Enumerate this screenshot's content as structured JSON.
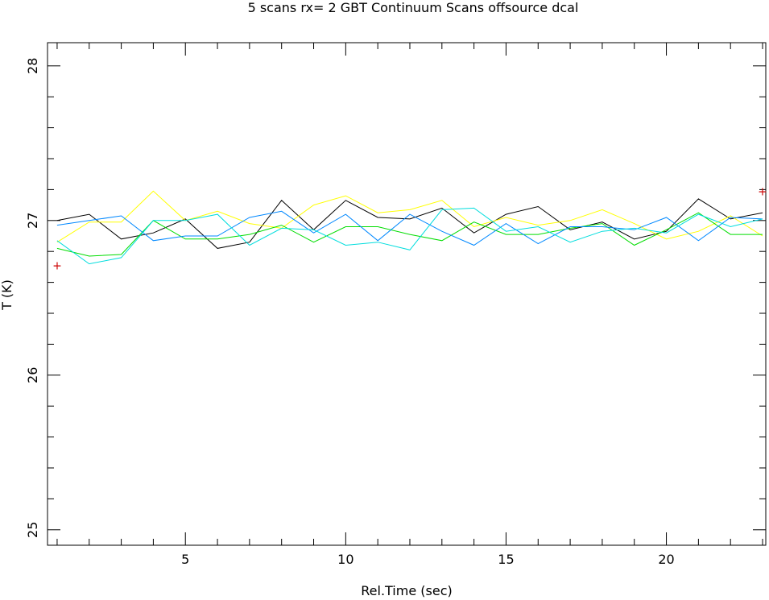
{
  "chart_data": {
    "type": "line",
    "title": "5 scans rx= 2 GBT Continuum Scans offsource dcal",
    "xlabel": "Rel.Time (sec)",
    "ylabel": "T (K)",
    "xlim": [
      0.7,
      23.1
    ],
    "ylim": [
      24.9,
      28.15
    ],
    "x_ticks": [
      5,
      10,
      15,
      20
    ],
    "y_ticks": [
      25,
      26,
      27,
      28
    ],
    "grid": false,
    "x": [
      1,
      2,
      3,
      4,
      5,
      6,
      7,
      8,
      9,
      10,
      11,
      12,
      13,
      14,
      15,
      16,
      17,
      18,
      19,
      20,
      21,
      22,
      23
    ],
    "series": [
      {
        "color": "#000000",
        "values": [
          27.0,
          27.04,
          26.88,
          26.92,
          27.01,
          26.82,
          26.86,
          27.13,
          26.94,
          27.13,
          27.02,
          27.01,
          27.08,
          26.92,
          27.04,
          27.09,
          26.94,
          26.99,
          26.88,
          26.93,
          27.14,
          27.01,
          27.05
        ]
      },
      {
        "color": "#ffff00",
        "values": [
          26.86,
          26.99,
          26.99,
          27.19,
          27.0,
          27.06,
          26.98,
          26.95,
          27.1,
          27.16,
          27.05,
          27.07,
          27.13,
          26.96,
          27.02,
          26.97,
          27.0,
          27.07,
          26.98,
          26.88,
          26.93,
          27.03,
          26.9
        ]
      },
      {
        "color": "#00dd00",
        "values": [
          26.82,
          26.77,
          26.78,
          27.0,
          26.88,
          26.88,
          26.91,
          26.97,
          26.86,
          26.96,
          26.96,
          26.91,
          26.87,
          26.99,
          26.91,
          26.91,
          26.95,
          26.98,
          26.84,
          26.94,
          27.05,
          26.91,
          26.91
        ]
      },
      {
        "color": "#0088ff",
        "values": [
          26.97,
          27.0,
          27.03,
          26.87,
          26.9,
          26.9,
          27.02,
          27.06,
          26.92,
          27.04,
          26.87,
          27.04,
          26.93,
          26.84,
          26.98,
          26.85,
          26.96,
          26.96,
          26.94,
          27.02,
          26.87,
          27.02,
          27.01
        ]
      },
      {
        "color": "#00dddd",
        "values": [
          26.87,
          26.72,
          26.76,
          27.0,
          27.0,
          27.04,
          26.84,
          26.95,
          26.94,
          26.84,
          26.86,
          26.81,
          27.07,
          27.08,
          26.93,
          26.96,
          26.86,
          26.93,
          26.95,
          26.92,
          27.04,
          26.96,
          27.01
        ]
      }
    ],
    "markers": [
      {
        "x": 1,
        "y": 26.71,
        "color": "#cc0000",
        "symbol": "+"
      },
      {
        "x": 23,
        "y": 27.19,
        "color": "#cc0000",
        "symbol": "+"
      }
    ]
  }
}
